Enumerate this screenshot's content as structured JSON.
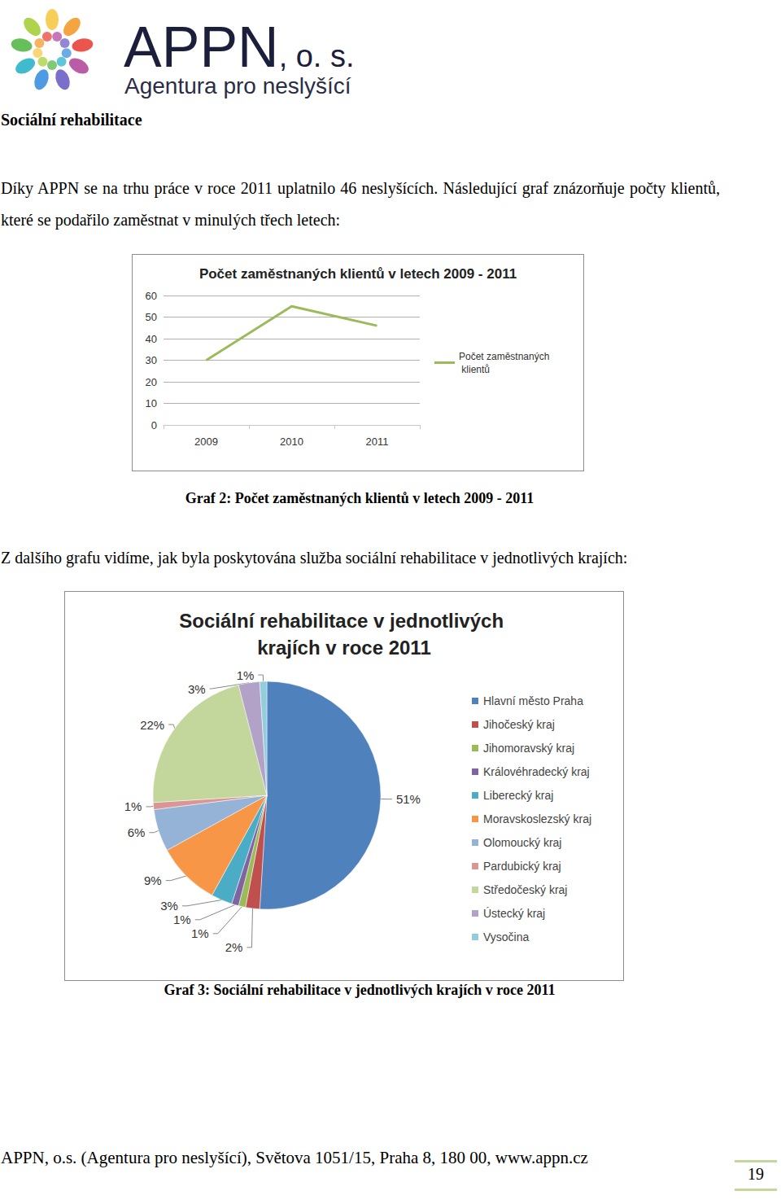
{
  "header": {
    "logo_title": "APPN",
    "logo_suffix": ", o. s.",
    "logo_subtitle": "Agentura pro neslyšící"
  },
  "section_title": "Sociální rehabilitace",
  "intro": "Díky APPN se na trhu práce v roce 2011 uplatnilo 46 neslyšících. Následující graf znázorňuje počty klientů, které se podařilo zaměstnat v minulých třech letech:",
  "between_text": "Z dalšího grafu vidíme, jak byla poskytována služba sociální rehabilitace v jednotlivých krajích:",
  "captions": [
    "Graf 2: Počet zaměstnaných klientů v letech 2009 - 2011",
    "Graf 3: Sociální rehabilitace v jednotlivých krajích v roce 2011"
  ],
  "chart_data": [
    {
      "type": "line",
      "title": "Počet zaměstnaných klientů v letech 2009 - 2011",
      "categories": [
        "2009",
        "2010",
        "2011"
      ],
      "series": [
        {
          "name": "Počet zaměstnaných klientů",
          "color": "#9bbb59",
          "values": [
            30,
            55,
            46
          ]
        }
      ],
      "ylim": [
        0,
        60
      ],
      "yticks": [
        0,
        10,
        20,
        30,
        40,
        50,
        60
      ],
      "grid": true,
      "legend": "right"
    },
    {
      "type": "pie",
      "title": "Sociální rehabilitace v jednotlivých krajích v roce 2011",
      "categories": [
        "Hlavní město Praha",
        "Jihočeský kraj",
        "Jihomoravský kraj",
        "Královéhradecký kraj",
        "Liberecký kraj",
        "Moravskoslezský kraj",
        "Olomoucký kraj",
        "Pardubický kraj",
        "Středočeský kraj",
        "Ústecký kraj",
        "Vysočina"
      ],
      "values": [
        51,
        2,
        1,
        1,
        3,
        9,
        6,
        1,
        22,
        3,
        1
      ],
      "value_labels": [
        "51%",
        "2%",
        "1%",
        "1%",
        "3%",
        "9%",
        "6%",
        "1%",
        "22%",
        "3%",
        "1%"
      ],
      "colors": [
        "#4f81bd",
        "#c0504d",
        "#9bbb59",
        "#8064a2",
        "#4bacc6",
        "#f79646",
        "#95b3d7",
        "#d99694",
        "#c3d69b",
        "#b3a2c7",
        "#93cddd"
      ],
      "data_labels": true,
      "legend": "right"
    }
  ],
  "footer": {
    "address": "APPN, o.s. (Agentura pro neslyšící), Světova 1051/15, Praha 8, 180 00, www.appn.cz",
    "page_number": "19"
  }
}
